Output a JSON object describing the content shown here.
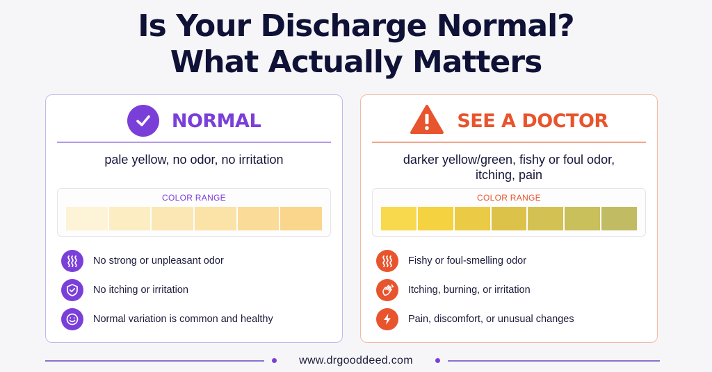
{
  "title": {
    "line1": "Is Your Discharge Normal?",
    "line2": "What Actually Matters"
  },
  "normal": {
    "icon": "check-circle-icon",
    "label": "NORMAL",
    "description": "pale yellow, no odor, no irritation",
    "range_title": "COLOR RANGE",
    "swatches": [
      "#fdf3d6",
      "#fcedc2",
      "#fbe7b3",
      "#fbe2a6",
      "#fadc98",
      "#f9d68b"
    ],
    "items": [
      {
        "icon": "odor-waves-icon",
        "text": "No strong or unpleasant odor"
      },
      {
        "icon": "shield-check-icon",
        "text": "No itching or irritation"
      },
      {
        "icon": "smiley-face-icon",
        "text": "Normal variation is common and healthy"
      }
    ],
    "accent": "#7b3fd9"
  },
  "doctor": {
    "icon": "warning-triangle-icon",
    "label": "SEE A DOCTOR",
    "description_line1": "darker yellow/green, fishy or foul odor,",
    "description_line2": "itching, pain",
    "range_title": "COLOR RANGE",
    "swatches": [
      "#f8d94d",
      "#f5d23f",
      "#ebcb45",
      "#ddc24a",
      "#d3c253",
      "#c9bf5b",
      "#c1bc64"
    ],
    "items": [
      {
        "icon": "odor-waves-icon",
        "text": "Fishy or foul-smelling odor"
      },
      {
        "icon": "scratching-hand-icon",
        "text": "Itching, burning, or irritation"
      },
      {
        "icon": "lightning-bolt-icon",
        "text": "Pain, discomfort, or unusual changes"
      }
    ],
    "accent": "#e8542d"
  },
  "footer": {
    "website": "www.drgooddeed.com"
  }
}
